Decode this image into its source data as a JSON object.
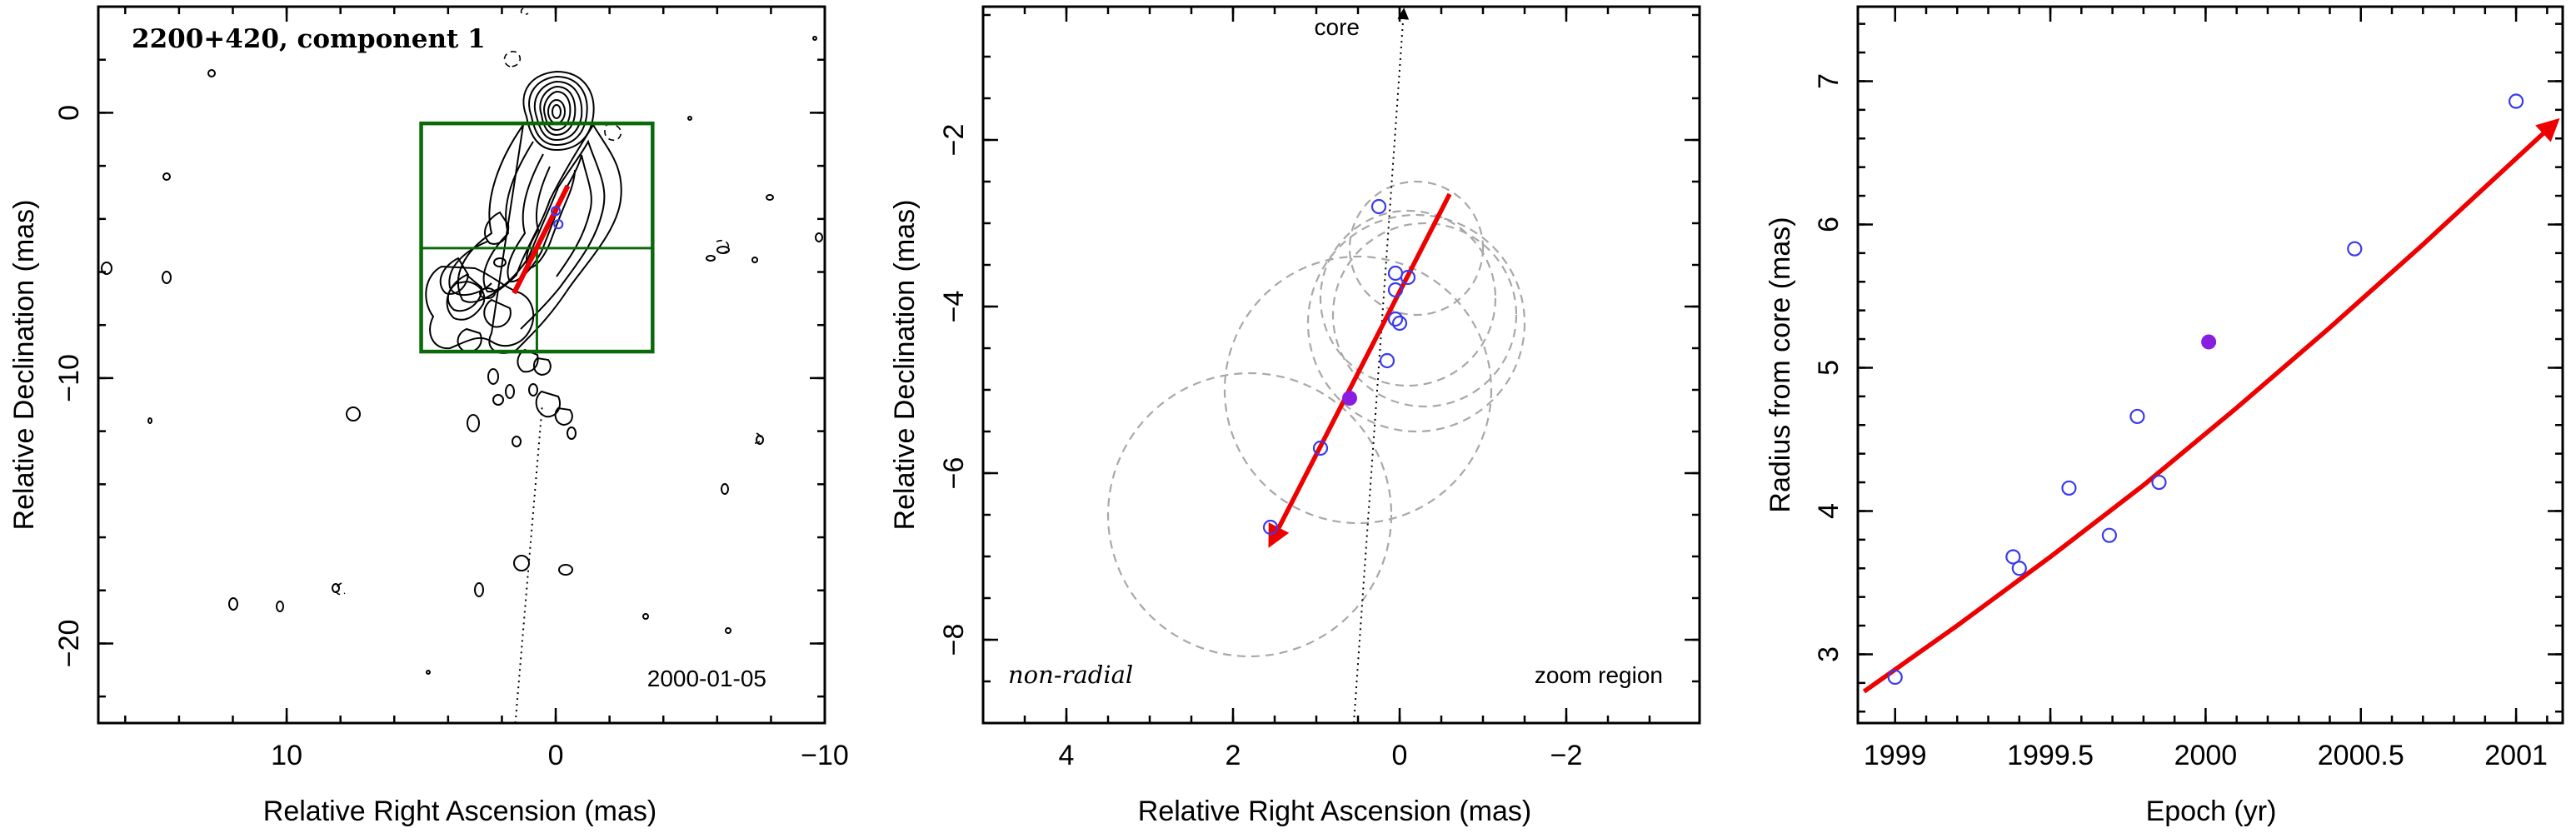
{
  "figure": {
    "colors": {
      "fit_line": "#ee0000",
      "points": "#3a3aee",
      "highlight_point": "#8a1ee0",
      "zoom_box": "#0a6a0a",
      "error_circles": "#a8a8a8"
    }
  },
  "chart_data": [
    {
      "type": "contour map",
      "title": "2200+420, component 1",
      "date_label": "2000-01-05",
      "xlabel": "Relative Right Ascension (mas)",
      "ylabel": "Relative Declination (mas)",
      "xlim": [
        17,
        -10
      ],
      "ylim": [
        -23,
        4
      ],
      "xticks": [
        10,
        0,
        -10
      ],
      "yticks": [
        0,
        -10,
        -20
      ],
      "zoom_box": {
        "x_range": [
          5,
          -3.6
        ],
        "y_range": [
          -0.4,
          -9
        ]
      },
      "zoom_box_cross": {
        "x": 0.7,
        "y": -5.1
      },
      "fit_vector": {
        "from": [
          1.55,
          -6.8
        ],
        "to": [
          -0.45,
          -2.75
        ]
      },
      "core_direction_line": {
        "from": [
          1.5,
          -23
        ],
        "to": [
          0.5,
          -11
        ]
      }
    },
    {
      "type": "scatter",
      "annotations": [
        "core",
        "non-radial",
        "zoom region"
      ],
      "xlabel": "Relative Right Ascension (mas)",
      "ylabel": "Relative Declination (mas)",
      "xlim": [
        5,
        -3.6
      ],
      "ylim": [
        -9,
        -0.4
      ],
      "xticks": [
        4,
        2,
        0,
        -2
      ],
      "yticks": [
        -2,
        -4,
        -6,
        -8
      ],
      "points_open": [
        [
          0.25,
          -2.8
        ],
        [
          0.05,
          -3.6
        ],
        [
          -0.1,
          -3.65
        ],
        [
          0.05,
          -3.8
        ],
        [
          0.05,
          -4.15
        ],
        [
          0.0,
          -4.2
        ],
        [
          0.15,
          -4.65
        ],
        [
          0.95,
          -5.7
        ],
        [
          1.55,
          -6.65
        ]
      ],
      "points_filled": [
        [
          0.6,
          -5.1
        ]
      ],
      "error_circles": [
        {
          "center": [
            -0.2,
            -3.3
          ],
          "radius": 0.8
        },
        {
          "center": [
            -0.3,
            -4.1
          ],
          "radius": 1.1
        },
        {
          "center": [
            -0.1,
            -3.9
          ],
          "radius": 1.05
        },
        {
          "center": [
            -0.2,
            -4.2
          ],
          "radius": 1.3
        },
        {
          "center": [
            0.5,
            -5.0
          ],
          "radius": 1.6
        },
        {
          "center": [
            1.8,
            -6.5
          ],
          "radius": 1.7
        }
      ],
      "fit_vector": {
        "from": [
          1.55,
          -6.85
        ],
        "to": [
          -0.6,
          -2.65
        ]
      },
      "core_direction_line": {
        "from": [
          0.55,
          -9
        ],
        "to": [
          -0.05,
          -0.4
        ]
      }
    },
    {
      "type": "scatter",
      "xlabel": "Epoch (yr)",
      "ylabel": "Radius from core (mas)",
      "xlim": [
        1998.88,
        2001.15
      ],
      "ylim": [
        2.52,
        7.52
      ],
      "xticks": [
        1999,
        1999.5,
        2000,
        2000.5,
        2001
      ],
      "yticks": [
        3,
        4,
        5,
        6,
        7
      ],
      "points_open": [
        [
          1999.0,
          2.84
        ],
        [
          1999.38,
          3.68
        ],
        [
          1999.4,
          3.6
        ],
        [
          1999.56,
          4.16
        ],
        [
          1999.69,
          3.83
        ],
        [
          1999.78,
          4.66
        ],
        [
          1999.85,
          4.2
        ],
        [
          2000.48,
          5.83
        ],
        [
          2001.0,
          6.86
        ]
      ],
      "points_filled": [
        [
          2000.01,
          5.18
        ]
      ],
      "fit_curve": [
        [
          1998.9,
          2.74
        ],
        [
          1999.2,
          3.2
        ],
        [
          1999.5,
          3.68
        ],
        [
          1999.8,
          4.18
        ],
        [
          2000.1,
          4.72
        ],
        [
          2000.4,
          5.28
        ],
        [
          2000.7,
          5.86
        ],
        [
          2001.0,
          6.46
        ],
        [
          2001.13,
          6.72
        ]
      ]
    }
  ]
}
